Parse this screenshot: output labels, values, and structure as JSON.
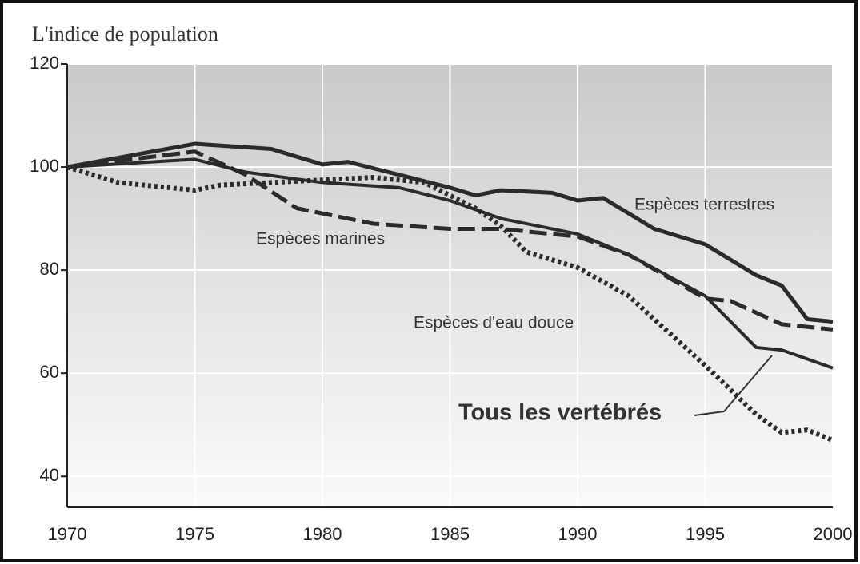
{
  "chart_data": {
    "type": "line",
    "title": "L'indice de population",
    "xlim": [
      1970,
      2000
    ],
    "xticks": [
      1970,
      1975,
      1980,
      1985,
      1990,
      1995,
      2000
    ],
    "ylim": [
      34,
      120
    ],
    "yticks": [
      40,
      60,
      80,
      100,
      120
    ],
    "grid": true,
    "series": [
      {
        "name": "Espèces terrestres",
        "color": "#2b2b2b",
        "style": "solid",
        "width": 5,
        "x": [
          1970,
          1975,
          1978,
          1980,
          1981,
          1983,
          1985,
          1986,
          1987,
          1989,
          1990,
          1991,
          1993,
          1995,
          1997,
          1998,
          1999,
          2000
        ],
        "values": [
          100,
          104.5,
          103.5,
          100.5,
          101,
          98.5,
          96,
          94.5,
          95.5,
          95,
          93.5,
          94,
          88,
          85,
          79,
          77,
          70.5,
          70
        ]
      },
      {
        "name": "Espèces marines",
        "color": "#2b2b2b",
        "style": "dashed",
        "width": 5,
        "x": [
          1970,
          1975,
          1977,
          1979,
          1980,
          1982,
          1985,
          1987,
          1990,
          1992,
          1995,
          1996,
          1998,
          2000
        ],
        "values": [
          100,
          103,
          98.5,
          92,
          91,
          89,
          88,
          88,
          86.5,
          83,
          74.5,
          74,
          69.5,
          68.5
        ]
      },
      {
        "name": "Espèces d'eau douce",
        "color": "#2b2b2b",
        "style": "dotted",
        "width": 6,
        "x": [
          1970,
          1972,
          1975,
          1976,
          1978,
          1980,
          1982,
          1984,
          1986,
          1987,
          1988,
          1990,
          1992,
          1995,
          1997,
          1998,
          1999,
          2000
        ],
        "values": [
          100,
          97,
          95.5,
          96.5,
          97,
          97.5,
          98,
          97,
          92,
          88.5,
          83.5,
          80.5,
          75,
          61.5,
          52,
          48.5,
          49,
          47
        ]
      },
      {
        "name": "Tous les vertébrés",
        "color": "#2b2b2b",
        "style": "solid",
        "width": 4,
        "x": [
          1970,
          1975,
          1977,
          1980,
          1983,
          1985,
          1987,
          1990,
          1992,
          1995,
          1997,
          1998,
          2000
        ],
        "values": [
          100,
          101.5,
          99,
          97,
          96,
          93.5,
          90,
          87,
          83,
          75,
          65,
          64.5,
          61
        ]
      }
    ]
  }
}
